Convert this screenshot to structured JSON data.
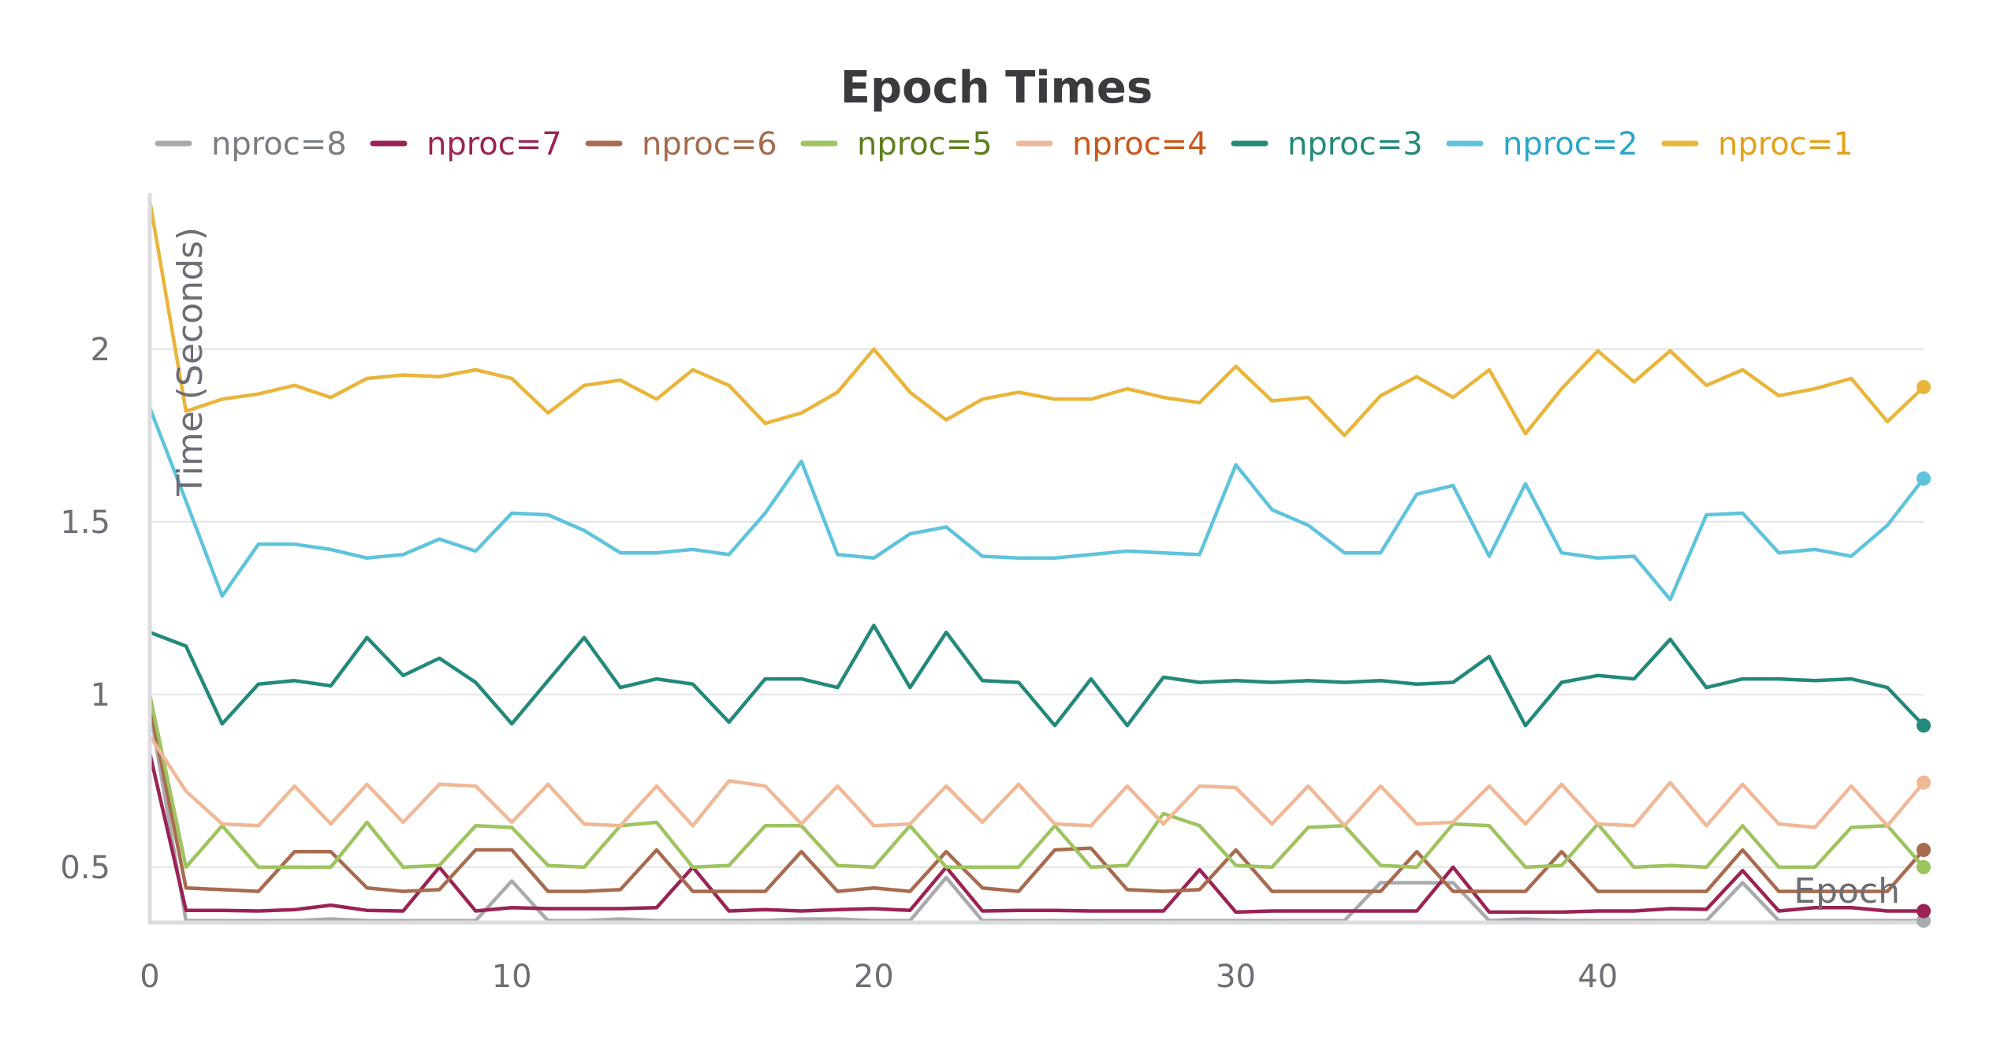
{
  "chart_data": {
    "type": "line",
    "title": "Epoch Times",
    "xlabel": "Epoch",
    "ylabel": "Time (Seconds)",
    "xlim": [
      0,
      49
    ],
    "ylim": [
      0.34,
      2.44
    ],
    "x_ticks": [
      0,
      10,
      20,
      30,
      40
    ],
    "y_ticks": [
      0.5,
      1,
      1.5,
      2
    ],
    "y_tick_labels": [
      "0.5",
      "1",
      "1.5",
      "2"
    ],
    "grid": true,
    "legend_position": "top",
    "x": [
      0,
      1,
      2,
      3,
      4,
      5,
      6,
      7,
      8,
      9,
      10,
      11,
      12,
      13,
      14,
      15,
      16,
      17,
      18,
      19,
      20,
      21,
      22,
      23,
      24,
      25,
      26,
      27,
      28,
      29,
      30,
      31,
      32,
      33,
      34,
      35,
      36,
      37,
      38,
      39,
      40,
      41,
      42,
      43,
      44,
      45,
      46,
      47,
      48,
      49
    ],
    "series": [
      {
        "name": "nproc=8",
        "color": "#a8aaad",
        "text_color": "#7a7d82",
        "values": [
          0.96,
          0.345,
          0.345,
          0.345,
          0.345,
          0.35,
          0.345,
          0.345,
          0.345,
          0.345,
          0.46,
          0.345,
          0.345,
          0.35,
          0.345,
          0.345,
          0.345,
          0.345,
          0.35,
          0.35,
          0.345,
          0.345,
          0.47,
          0.345,
          0.345,
          0.345,
          0.345,
          0.345,
          0.345,
          0.345,
          0.345,
          0.345,
          0.345,
          0.345,
          0.455,
          0.455,
          0.455,
          0.345,
          0.35,
          0.345,
          0.345,
          0.345,
          0.345,
          0.345,
          0.455,
          0.345,
          0.345,
          0.345,
          0.345,
          0.345
        ]
      },
      {
        "name": "nproc=7",
        "color": "#9b2255",
        "text_color": "#9b2255",
        "values": [
          0.83,
          0.375,
          0.375,
          0.373,
          0.377,
          0.39,
          0.375,
          0.373,
          0.5,
          0.373,
          0.383,
          0.38,
          0.38,
          0.38,
          0.383,
          0.5,
          0.373,
          0.377,
          0.373,
          0.377,
          0.38,
          0.375,
          0.5,
          0.373,
          0.375,
          0.375,
          0.373,
          0.373,
          0.373,
          0.493,
          0.37,
          0.373,
          0.373,
          0.373,
          0.373,
          0.373,
          0.5,
          0.37,
          0.37,
          0.37,
          0.373,
          0.373,
          0.38,
          0.378,
          0.49,
          0.373,
          0.383,
          0.383,
          0.373,
          0.373
        ]
      },
      {
        "name": "nproc=6",
        "color": "#a86b4f",
        "text_color": "#a86b4f",
        "values": [
          0.97,
          0.44,
          0.435,
          0.43,
          0.545,
          0.545,
          0.44,
          0.43,
          0.435,
          0.55,
          0.55,
          0.43,
          0.43,
          0.435,
          0.55,
          0.43,
          0.43,
          0.43,
          0.545,
          0.43,
          0.44,
          0.43,
          0.545,
          0.44,
          0.43,
          0.55,
          0.555,
          0.435,
          0.43,
          0.435,
          0.55,
          0.43,
          0.43,
          0.43,
          0.43,
          0.545,
          0.43,
          0.43,
          0.43,
          0.545,
          0.43,
          0.43,
          0.43,
          0.43,
          0.55,
          0.43,
          0.43,
          0.43,
          0.43,
          0.55
        ]
      },
      {
        "name": "nproc=5",
        "color": "#9dc45f",
        "text_color": "#5e7f1c",
        "values": [
          1.0,
          0.5,
          0.62,
          0.5,
          0.5,
          0.5,
          0.63,
          0.5,
          0.505,
          0.62,
          0.615,
          0.505,
          0.5,
          0.62,
          0.63,
          0.5,
          0.505,
          0.62,
          0.62,
          0.505,
          0.5,
          0.62,
          0.5,
          0.5,
          0.5,
          0.62,
          0.5,
          0.505,
          0.655,
          0.62,
          0.505,
          0.5,
          0.615,
          0.62,
          0.505,
          0.5,
          0.625,
          0.62,
          0.5,
          0.505,
          0.625,
          0.5,
          0.505,
          0.5,
          0.62,
          0.5,
          0.5,
          0.615,
          0.62,
          0.5
        ]
      },
      {
        "name": "nproc=4",
        "color": "#f0b897",
        "text_color": "#c8581a",
        "values": [
          0.88,
          0.72,
          0.625,
          0.62,
          0.735,
          0.625,
          0.74,
          0.63,
          0.74,
          0.735,
          0.63,
          0.74,
          0.625,
          0.62,
          0.735,
          0.62,
          0.75,
          0.735,
          0.625,
          0.735,
          0.62,
          0.625,
          0.735,
          0.63,
          0.74,
          0.625,
          0.62,
          0.735,
          0.625,
          0.735,
          0.73,
          0.625,
          0.735,
          0.62,
          0.735,
          0.625,
          0.63,
          0.735,
          0.625,
          0.74,
          0.625,
          0.62,
          0.745,
          0.62,
          0.74,
          0.625,
          0.615,
          0.735,
          0.62,
          0.745
        ]
      },
      {
        "name": "nproc=3",
        "color": "#23897a",
        "text_color": "#23897a",
        "values": [
          1.18,
          1.14,
          0.915,
          1.03,
          1.04,
          1.025,
          1.165,
          1.055,
          1.105,
          1.035,
          0.915,
          1.04,
          1.165,
          1.02,
          1.045,
          1.03,
          0.92,
          1.045,
          1.045,
          1.02,
          1.2,
          1.02,
          1.18,
          1.04,
          1.035,
          0.91,
          1.045,
          0.91,
          1.05,
          1.035,
          1.04,
          1.035,
          1.04,
          1.035,
          1.04,
          1.03,
          1.035,
          1.11,
          0.91,
          1.035,
          1.055,
          1.045,
          1.16,
          1.02,
          1.045,
          1.045,
          1.04,
          1.045,
          1.02,
          0.91
        ]
      },
      {
        "name": "nproc=2",
        "color": "#5fc3dc",
        "text_color": "#2ba5c9",
        "values": [
          1.83,
          1.56,
          1.285,
          1.435,
          1.435,
          1.42,
          1.395,
          1.405,
          1.45,
          1.415,
          1.525,
          1.52,
          1.475,
          1.41,
          1.41,
          1.42,
          1.405,
          1.525,
          1.675,
          1.405,
          1.395,
          1.465,
          1.485,
          1.4,
          1.395,
          1.395,
          1.405,
          1.415,
          1.41,
          1.405,
          1.665,
          1.535,
          1.49,
          1.41,
          1.41,
          1.58,
          1.605,
          1.4,
          1.61,
          1.41,
          1.395,
          1.4,
          1.275,
          1.52,
          1.525,
          1.41,
          1.42,
          1.4,
          1.49,
          1.625
        ]
      },
      {
        "name": "nproc=1",
        "color": "#e9b53a",
        "text_color": "#e2a117",
        "values": [
          2.43,
          1.82,
          1.855,
          1.87,
          1.895,
          1.86,
          1.915,
          1.925,
          1.92,
          1.94,
          1.915,
          1.815,
          1.895,
          1.91,
          1.855,
          1.94,
          1.895,
          1.785,
          1.815,
          1.875,
          2.0,
          1.875,
          1.795,
          1.855,
          1.875,
          1.855,
          1.855,
          1.885,
          1.86,
          1.845,
          1.95,
          1.85,
          1.86,
          1.75,
          1.865,
          1.92,
          1.86,
          1.94,
          1.755,
          1.885,
          1.995,
          1.905,
          1.995,
          1.895,
          1.94,
          1.865,
          1.885,
          1.915,
          1.79,
          1.89
        ]
      }
    ]
  }
}
